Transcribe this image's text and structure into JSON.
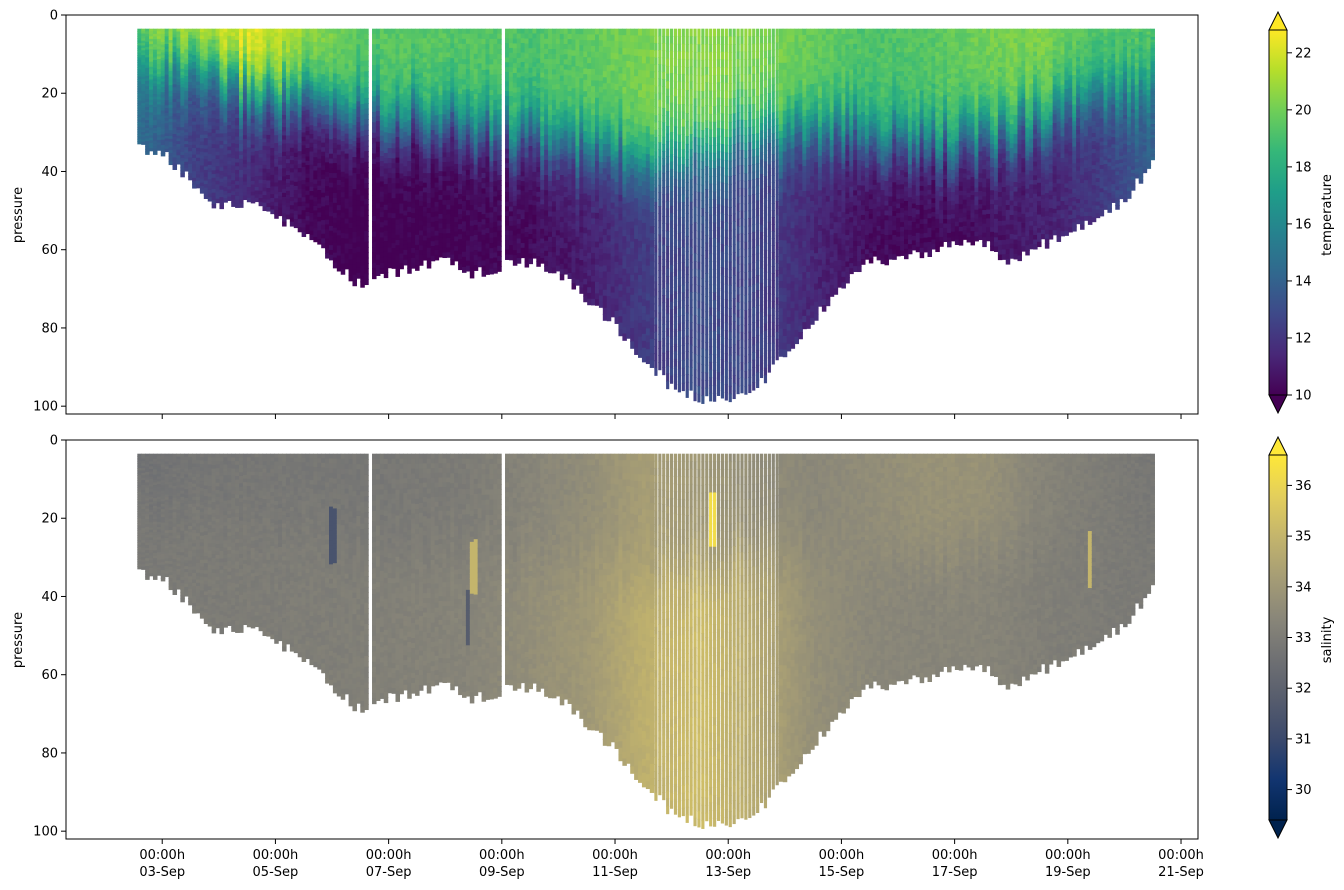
{
  "chart_data": [
    {
      "type": "scatter",
      "panel": "top",
      "variable_label": "temperature",
      "ylabel": "pressure",
      "ylim": [
        102,
        0
      ],
      "yticks": [
        0,
        20,
        40,
        60,
        80,
        100
      ],
      "xlim_days": [
        1.3,
        21.3
      ],
      "colorbar": {
        "label": "temperature",
        "range": [
          10,
          22.8
        ],
        "ticks": [
          10,
          12,
          14,
          16,
          18,
          20,
          22
        ],
        "colormap": "viridis",
        "extend": "both",
        "stops": [
          "#440154",
          "#482878",
          "#3e4989",
          "#31688e",
          "#26828e",
          "#1f9e89",
          "#35b779",
          "#6ece58",
          "#b5de2b",
          "#fde725"
        ]
      },
      "gaps_at_days": [
        6.7,
        9.0
      ],
      "profile_depth_envelope": [
        {
          "day": 2.6,
          "depth": 34
        },
        {
          "day": 3.0,
          "depth": 35
        },
        {
          "day": 3.5,
          "depth": 42
        },
        {
          "day": 4.0,
          "depth": 49
        },
        {
          "day": 4.5,
          "depth": 48
        },
        {
          "day": 5.0,
          "depth": 51
        },
        {
          "day": 5.5,
          "depth": 56
        },
        {
          "day": 6.0,
          "depth": 63
        },
        {
          "day": 6.5,
          "depth": 69
        },
        {
          "day": 7.0,
          "depth": 66
        },
        {
          "day": 7.5,
          "depth": 64
        },
        {
          "day": 8.0,
          "depth": 63
        },
        {
          "day": 8.5,
          "depth": 66
        },
        {
          "day": 9.0,
          "depth": 64
        },
        {
          "day": 9.5,
          "depth": 63
        },
        {
          "day": 10.0,
          "depth": 66
        },
        {
          "day": 10.5,
          "depth": 72
        },
        {
          "day": 11.0,
          "depth": 79
        },
        {
          "day": 11.5,
          "depth": 88
        },
        {
          "day": 12.0,
          "depth": 95
        },
        {
          "day": 12.5,
          "depth": 98
        },
        {
          "day": 13.0,
          "depth": 98
        },
        {
          "day": 13.5,
          "depth": 95
        },
        {
          "day": 14.0,
          "depth": 87
        },
        {
          "day": 14.5,
          "depth": 78
        },
        {
          "day": 15.0,
          "depth": 69
        },
        {
          "day": 15.5,
          "depth": 63
        },
        {
          "day": 16.0,
          "depth": 62
        },
        {
          "day": 16.5,
          "depth": 61
        },
        {
          "day": 17.0,
          "depth": 58
        },
        {
          "day": 17.5,
          "depth": 58
        },
        {
          "day": 18.0,
          "depth": 63
        },
        {
          "day": 18.5,
          "depth": 59
        },
        {
          "day": 19.0,
          "depth": 56
        },
        {
          "day": 19.5,
          "depth": 52
        },
        {
          "day": 20.0,
          "depth": 47
        },
        {
          "day": 20.5,
          "depth": 38
        }
      ],
      "start_depth": 3.5,
      "structure": [
        {
          "day": 2.6,
          "mixed_layer_depth": 12,
          "surface_value": 20.5,
          "deep_value": 14.5
        },
        {
          "day": 3.5,
          "mixed_layer_depth": 15,
          "surface_value": 21.5,
          "deep_value": 12.5
        },
        {
          "day": 4.5,
          "mixed_layer_depth": 19,
          "surface_value": 22.6,
          "deep_value": 11.5
        },
        {
          "day": 5.5,
          "mixed_layer_depth": 22,
          "surface_value": 21.0,
          "deep_value": 10.3
        },
        {
          "day": 6.5,
          "mixed_layer_depth": 25,
          "surface_value": 19.5,
          "deep_value": 9.8
        },
        {
          "day": 8.0,
          "mixed_layer_depth": 27,
          "surface_value": 19.5,
          "deep_value": 10.0
        },
        {
          "day": 9.5,
          "mixed_layer_depth": 31,
          "surface_value": 19.2,
          "deep_value": 10.3
        },
        {
          "day": 10.5,
          "mixed_layer_depth": 34,
          "surface_value": 19.6,
          "deep_value": 11.0
        },
        {
          "day": 11.5,
          "mixed_layer_depth": 35,
          "surface_value": 20.2,
          "deep_value": 12.2
        },
        {
          "day": 12.5,
          "mixed_layer_depth": 32,
          "surface_value": 20.5,
          "deep_value": 13.0
        },
        {
          "day": 13.5,
          "mixed_layer_depth": 30,
          "surface_value": 20.3,
          "deep_value": 12.6
        },
        {
          "day": 14.5,
          "mixed_layer_depth": 29,
          "surface_value": 19.8,
          "deep_value": 11.4
        },
        {
          "day": 15.5,
          "mixed_layer_depth": 31,
          "surface_value": 19.2,
          "deep_value": 10.4
        },
        {
          "day": 16.5,
          "mixed_layer_depth": 33,
          "surface_value": 19.4,
          "deep_value": 10.2
        },
        {
          "day": 17.5,
          "mixed_layer_depth": 32,
          "surface_value": 20.0,
          "deep_value": 10.5
        },
        {
          "day": 18.5,
          "mixed_layer_depth": 26,
          "surface_value": 20.3,
          "deep_value": 11.0
        },
        {
          "day": 19.5,
          "mixed_layer_depth": 22,
          "surface_value": 19.4,
          "deep_value": 12.0
        },
        {
          "day": 20.5,
          "mixed_layer_depth": 18,
          "surface_value": 19.5,
          "deep_value": 13.8
        }
      ]
    },
    {
      "type": "scatter",
      "panel": "bottom",
      "variable_label": "salinity",
      "ylabel": "pressure",
      "ylim": [
        102,
        0
      ],
      "yticks": [
        0,
        20,
        40,
        60,
        80,
        100
      ],
      "xlim_days": [
        1.3,
        21.3
      ],
      "colorbar": {
        "label": "salinity",
        "range": [
          29.4,
          36.6
        ],
        "ticks": [
          30,
          31,
          32,
          33,
          34,
          35,
          36
        ],
        "colormap": "cividis",
        "extend": "both",
        "stops": [
          "#00224e",
          "#123570",
          "#3b496c",
          "#575d6d",
          "#707173",
          "#8a8779",
          "#a69d75",
          "#c4b56c",
          "#e4cf5b",
          "#fee838"
        ]
      },
      "gaps_at_days": [
        6.7,
        9.0
      ],
      "structure": [
        {
          "day": 2.6,
          "mixed_layer_depth": 15,
          "surface_value": 32.6,
          "deep_value": 32.9
        },
        {
          "day": 4.5,
          "mixed_layer_depth": 20,
          "surface_value": 32.8,
          "deep_value": 33.0
        },
        {
          "day": 6.5,
          "mixed_layer_depth": 25,
          "surface_value": 32.8,
          "deep_value": 33.1
        },
        {
          "day": 8.5,
          "mixed_layer_depth": 28,
          "surface_value": 33.0,
          "deep_value": 33.3
        },
        {
          "day": 10.5,
          "mixed_layer_depth": 30,
          "surface_value": 33.6,
          "deep_value": 34.0
        },
        {
          "day": 11.5,
          "mixed_layer_depth": 32,
          "surface_value": 34.2,
          "deep_value": 34.8
        },
        {
          "day": 12.5,
          "mixed_layer_depth": 30,
          "surface_value": 34.0,
          "deep_value": 35.2
        },
        {
          "day": 13.5,
          "mixed_layer_depth": 28,
          "surface_value": 33.6,
          "deep_value": 34.6
        },
        {
          "day": 14.5,
          "mixed_layer_depth": 28,
          "surface_value": 33.4,
          "deep_value": 33.7
        },
        {
          "day": 15.5,
          "mixed_layer_depth": 30,
          "surface_value": 33.6,
          "deep_value": 33.4
        },
        {
          "day": 16.5,
          "mixed_layer_depth": 30,
          "surface_value": 33.8,
          "deep_value": 33.3
        },
        {
          "day": 17.5,
          "mixed_layer_depth": 28,
          "surface_value": 33.8,
          "deep_value": 33.3
        },
        {
          "day": 18.5,
          "mixed_layer_depth": 25,
          "surface_value": 33.3,
          "deep_value": 33.1
        },
        {
          "day": 20.5,
          "mixed_layer_depth": 20,
          "surface_value": 32.8,
          "deep_value": 32.9
        }
      ],
      "features": [
        {
          "day": 12.7,
          "depth": 19,
          "value": 36.2,
          "note": "high-salinity streak"
        },
        {
          "day": 19.4,
          "depth": 30,
          "value": 35.0
        },
        {
          "day": 8.5,
          "depth": 32,
          "value": 35.0
        },
        {
          "day": 6.0,
          "depth": 24,
          "value": 31.4
        },
        {
          "day": 8.4,
          "depth": 45,
          "value": 31.8
        }
      ]
    }
  ],
  "x_axis": {
    "tick_days": [
      3,
      5,
      7,
      9,
      11,
      13,
      15,
      17,
      19,
      21
    ],
    "tick_labels_line1": [
      "00:00h",
      "00:00h",
      "00:00h",
      "00:00h",
      "00:00h",
      "00:00h",
      "00:00h",
      "00:00h",
      "00:00h",
      "00:00h"
    ],
    "tick_labels_line2": [
      "03-Sep",
      "05-Sep",
      "07-Sep",
      "09-Sep",
      "11-Sep",
      "13-Sep",
      "15-Sep",
      "17-Sep",
      "19-Sep",
      "21-Sep"
    ],
    "shared": true
  }
}
